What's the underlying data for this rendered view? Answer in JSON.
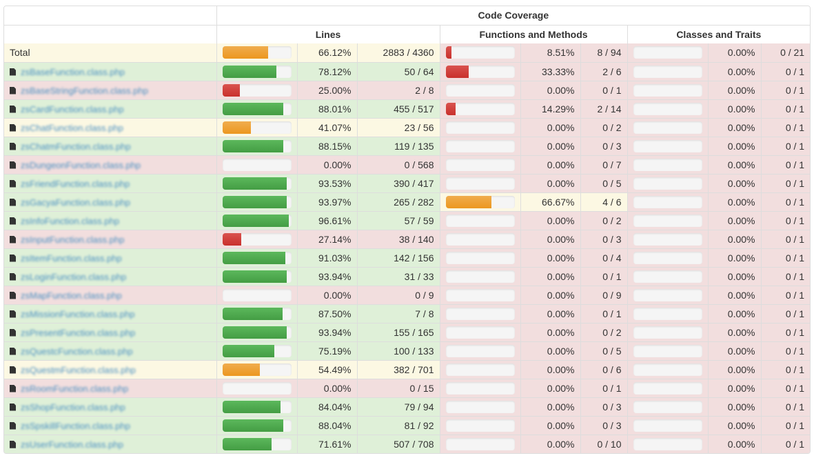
{
  "header": {
    "code_coverage": "Code Coverage",
    "lines": "Lines",
    "functions": "Functions and Methods",
    "classes": "Classes and Traits"
  },
  "colors": {
    "success": "#5cb85c",
    "warning": "#f0ad4e",
    "danger": "#d9534f"
  },
  "rows": [
    {
      "name": "Total",
      "icon": "",
      "lines": {
        "pct": "66.12%",
        "ratio": "2883 / 4360",
        "fill": 66.12,
        "level": "warning"
      },
      "functions": {
        "pct": "8.51%",
        "ratio": "8 / 94",
        "fill": 8.51,
        "level": "danger"
      },
      "classes": {
        "pct": "0.00%",
        "ratio": "0 / 21",
        "fill": 0,
        "level": "danger"
      }
    },
    {
      "name": "zsBaseFunction.class.php",
      "icon": "file-icon",
      "lines": {
        "pct": "78.12%",
        "ratio": "50 / 64",
        "fill": 78.12,
        "level": "success"
      },
      "functions": {
        "pct": "33.33%",
        "ratio": "2 / 6",
        "fill": 33.33,
        "level": "danger"
      },
      "classes": {
        "pct": "0.00%",
        "ratio": "0 / 1",
        "fill": 0,
        "level": "danger"
      }
    },
    {
      "name": "zsBaseStringFunction.class.php",
      "icon": "file-icon",
      "lines": {
        "pct": "25.00%",
        "ratio": "2 / 8",
        "fill": 25.0,
        "level": "danger"
      },
      "functions": {
        "pct": "0.00%",
        "ratio": "0 / 1",
        "fill": 0,
        "level": "danger"
      },
      "classes": {
        "pct": "0.00%",
        "ratio": "0 / 1",
        "fill": 0,
        "level": "danger"
      }
    },
    {
      "name": "zsCardFunction.class.php",
      "icon": "file-icon",
      "lines": {
        "pct": "88.01%",
        "ratio": "455 / 517",
        "fill": 88.01,
        "level": "success"
      },
      "functions": {
        "pct": "14.29%",
        "ratio": "2 / 14",
        "fill": 14.29,
        "level": "danger"
      },
      "classes": {
        "pct": "0.00%",
        "ratio": "0 / 1",
        "fill": 0,
        "level": "danger"
      }
    },
    {
      "name": "zsChatFunction.class.php",
      "icon": "file-icon",
      "lines": {
        "pct": "41.07%",
        "ratio": "23 / 56",
        "fill": 41.07,
        "level": "warning"
      },
      "functions": {
        "pct": "0.00%",
        "ratio": "0 / 2",
        "fill": 0,
        "level": "danger"
      },
      "classes": {
        "pct": "0.00%",
        "ratio": "0 / 1",
        "fill": 0,
        "level": "danger"
      }
    },
    {
      "name": "zsChatmFunction.class.php",
      "icon": "file-icon",
      "lines": {
        "pct": "88.15%",
        "ratio": "119 / 135",
        "fill": 88.15,
        "level": "success"
      },
      "functions": {
        "pct": "0.00%",
        "ratio": "0 / 3",
        "fill": 0,
        "level": "danger"
      },
      "classes": {
        "pct": "0.00%",
        "ratio": "0 / 1",
        "fill": 0,
        "level": "danger"
      }
    },
    {
      "name": "zsDungeonFunction.class.php",
      "icon": "file-icon",
      "lines": {
        "pct": "0.00%",
        "ratio": "0 / 568",
        "fill": 0,
        "level": "danger"
      },
      "functions": {
        "pct": "0.00%",
        "ratio": "0 / 7",
        "fill": 0,
        "level": "danger"
      },
      "classes": {
        "pct": "0.00%",
        "ratio": "0 / 1",
        "fill": 0,
        "level": "danger"
      }
    },
    {
      "name": "zsFriendFunction.class.php",
      "icon": "file-icon",
      "lines": {
        "pct": "93.53%",
        "ratio": "390 / 417",
        "fill": 93.53,
        "level": "success"
      },
      "functions": {
        "pct": "0.00%",
        "ratio": "0 / 5",
        "fill": 0,
        "level": "danger"
      },
      "classes": {
        "pct": "0.00%",
        "ratio": "0 / 1",
        "fill": 0,
        "level": "danger"
      }
    },
    {
      "name": "zsGacyaFunction.class.php",
      "icon": "file-icon",
      "lines": {
        "pct": "93.97%",
        "ratio": "265 / 282",
        "fill": 93.97,
        "level": "success"
      },
      "functions": {
        "pct": "66.67%",
        "ratio": "4 / 6",
        "fill": 66.67,
        "level": "warning"
      },
      "classes": {
        "pct": "0.00%",
        "ratio": "0 / 1",
        "fill": 0,
        "level": "danger"
      }
    },
    {
      "name": "zsInfoFunction.class.php",
      "icon": "file-icon",
      "lines": {
        "pct": "96.61%",
        "ratio": "57 / 59",
        "fill": 96.61,
        "level": "success"
      },
      "functions": {
        "pct": "0.00%",
        "ratio": "0 / 2",
        "fill": 0,
        "level": "danger"
      },
      "classes": {
        "pct": "0.00%",
        "ratio": "0 / 1",
        "fill": 0,
        "level": "danger"
      }
    },
    {
      "name": "zsInputFunction.class.php",
      "icon": "file-icon",
      "lines": {
        "pct": "27.14%",
        "ratio": "38 / 140",
        "fill": 27.14,
        "level": "danger"
      },
      "functions": {
        "pct": "0.00%",
        "ratio": "0 / 3",
        "fill": 0,
        "level": "danger"
      },
      "classes": {
        "pct": "0.00%",
        "ratio": "0 / 1",
        "fill": 0,
        "level": "danger"
      }
    },
    {
      "name": "zsItemFunction.class.php",
      "icon": "file-icon",
      "lines": {
        "pct": "91.03%",
        "ratio": "142 / 156",
        "fill": 91.03,
        "level": "success"
      },
      "functions": {
        "pct": "0.00%",
        "ratio": "0 / 4",
        "fill": 0,
        "level": "danger"
      },
      "classes": {
        "pct": "0.00%",
        "ratio": "0 / 1",
        "fill": 0,
        "level": "danger"
      }
    },
    {
      "name": "zsLoginFunction.class.php",
      "icon": "file-icon",
      "lines": {
        "pct": "93.94%",
        "ratio": "31 / 33",
        "fill": 93.94,
        "level": "success"
      },
      "functions": {
        "pct": "0.00%",
        "ratio": "0 / 1",
        "fill": 0,
        "level": "danger"
      },
      "classes": {
        "pct": "0.00%",
        "ratio": "0 / 1",
        "fill": 0,
        "level": "danger"
      }
    },
    {
      "name": "zsMapFunction.class.php",
      "icon": "file-icon",
      "lines": {
        "pct": "0.00%",
        "ratio": "0 / 9",
        "fill": 0,
        "level": "danger"
      },
      "functions": {
        "pct": "0.00%",
        "ratio": "0 / 9",
        "fill": 0,
        "level": "danger"
      },
      "classes": {
        "pct": "0.00%",
        "ratio": "0 / 1",
        "fill": 0,
        "level": "danger"
      }
    },
    {
      "name": "zsMissionFunction.class.php",
      "icon": "file-icon",
      "lines": {
        "pct": "87.50%",
        "ratio": "7 / 8",
        "fill": 87.5,
        "level": "success"
      },
      "functions": {
        "pct": "0.00%",
        "ratio": "0 / 1",
        "fill": 0,
        "level": "danger"
      },
      "classes": {
        "pct": "0.00%",
        "ratio": "0 / 1",
        "fill": 0,
        "level": "danger"
      }
    },
    {
      "name": "zsPresentFunction.class.php",
      "icon": "file-icon",
      "lines": {
        "pct": "93.94%",
        "ratio": "155 / 165",
        "fill": 93.94,
        "level": "success"
      },
      "functions": {
        "pct": "0.00%",
        "ratio": "0 / 2",
        "fill": 0,
        "level": "danger"
      },
      "classes": {
        "pct": "0.00%",
        "ratio": "0 / 1",
        "fill": 0,
        "level": "danger"
      }
    },
    {
      "name": "zsQuestcFunction.class.php",
      "icon": "file-icon",
      "lines": {
        "pct": "75.19%",
        "ratio": "100 / 133",
        "fill": 75.19,
        "level": "success"
      },
      "functions": {
        "pct": "0.00%",
        "ratio": "0 / 5",
        "fill": 0,
        "level": "danger"
      },
      "classes": {
        "pct": "0.00%",
        "ratio": "0 / 1",
        "fill": 0,
        "level": "danger"
      }
    },
    {
      "name": "zsQuestmFunction.class.php",
      "icon": "file-icon",
      "lines": {
        "pct": "54.49%",
        "ratio": "382 / 701",
        "fill": 54.49,
        "level": "warning"
      },
      "functions": {
        "pct": "0.00%",
        "ratio": "0 / 6",
        "fill": 0,
        "level": "danger"
      },
      "classes": {
        "pct": "0.00%",
        "ratio": "0 / 1",
        "fill": 0,
        "level": "danger"
      }
    },
    {
      "name": "zsRoomFunction.class.php",
      "icon": "file-icon",
      "lines": {
        "pct": "0.00%",
        "ratio": "0 / 15",
        "fill": 0,
        "level": "danger"
      },
      "functions": {
        "pct": "0.00%",
        "ratio": "0 / 1",
        "fill": 0,
        "level": "danger"
      },
      "classes": {
        "pct": "0.00%",
        "ratio": "0 / 1",
        "fill": 0,
        "level": "danger"
      }
    },
    {
      "name": "zsShopFunction.class.php",
      "icon": "file-icon",
      "lines": {
        "pct": "84.04%",
        "ratio": "79 / 94",
        "fill": 84.04,
        "level": "success"
      },
      "functions": {
        "pct": "0.00%",
        "ratio": "0 / 3",
        "fill": 0,
        "level": "danger"
      },
      "classes": {
        "pct": "0.00%",
        "ratio": "0 / 1",
        "fill": 0,
        "level": "danger"
      }
    },
    {
      "name": "zsSpskillFunction.class.php",
      "icon": "file-icon",
      "lines": {
        "pct": "88.04%",
        "ratio": "81 / 92",
        "fill": 88.04,
        "level": "success"
      },
      "functions": {
        "pct": "0.00%",
        "ratio": "0 / 3",
        "fill": 0,
        "level": "danger"
      },
      "classes": {
        "pct": "0.00%",
        "ratio": "0 / 1",
        "fill": 0,
        "level": "danger"
      }
    },
    {
      "name": "zsUserFunction.class.php",
      "icon": "file-icon",
      "lines": {
        "pct": "71.61%",
        "ratio": "507 / 708",
        "fill": 71.61,
        "level": "success"
      },
      "functions": {
        "pct": "0.00%",
        "ratio": "0 / 10",
        "fill": 0,
        "level": "danger"
      },
      "classes": {
        "pct": "0.00%",
        "ratio": "0 / 1",
        "fill": 0,
        "level": "danger"
      }
    }
  ]
}
